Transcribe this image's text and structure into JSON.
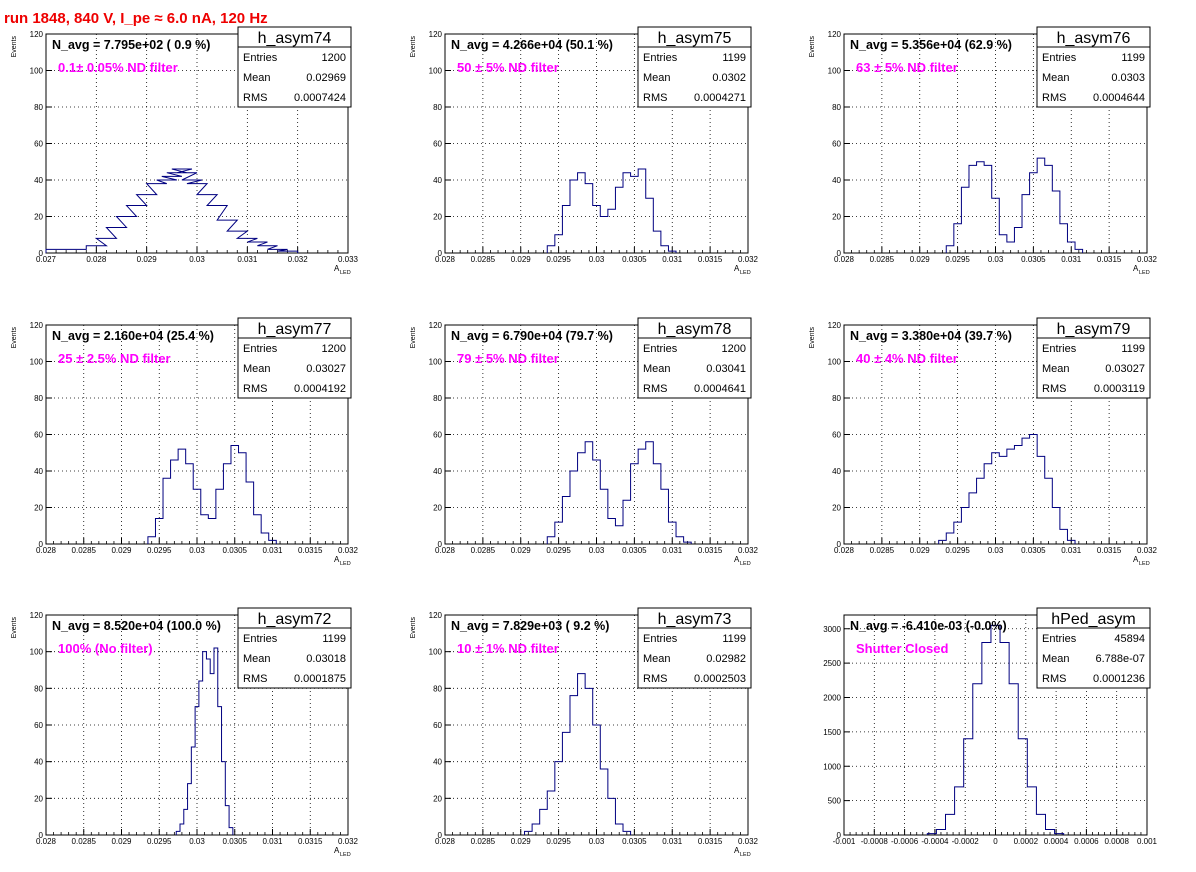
{
  "canvas_title": "run 1848,   840 V, I_pe ≈ 6.0 nA, 120 Hz",
  "colors": {
    "histogram": "#000080",
    "annotation": "#ff00ff",
    "title": "#ee0000"
  },
  "chart_data": [
    {
      "type": "histogram",
      "name": "h_asym74",
      "navg": "N_avg = 7.795e+02 ( 0.9 %)",
      "annotation": "0.1± 0.05% ND filter",
      "stats": {
        "entries_label": "Entries",
        "entries": "1200",
        "mean_label": "Mean",
        "mean": "0.02969",
        "rms_label": "RMS",
        "rms": "0.0007424"
      },
      "ylabel": "Events",
      "xlabel": "A",
      "xlabel_sub": "LED",
      "xlim": [
        0.027,
        0.033
      ],
      "ylim": [
        0,
        120
      ],
      "xticks": [
        0.027,
        0.028,
        0.029,
        0.03,
        0.031,
        0.032,
        0.033
      ],
      "xtick_labels": [
        "0.027",
        "0.028",
        "0.029",
        "0.03",
        "0.031",
        "0.032",
        "0.033"
      ],
      "yticks": [
        0,
        20,
        40,
        60,
        80,
        100,
        120
      ],
      "ytick_labels": [
        "0",
        "20",
        "40",
        "60",
        "80",
        "100",
        "120"
      ],
      "grid": true,
      "x": [
        0.0272,
        0.0276,
        0.028,
        0.0282,
        0.0284,
        0.0286,
        0.0288,
        0.029,
        0.0292,
        0.0294,
        0.0295,
        0.0296,
        0.0297,
        0.0298,
        0.0299,
        0.03,
        0.0302,
        0.0304,
        0.0306,
        0.0308,
        0.031,
        0.0312,
        0.0314,
        0.0316,
        0.0318
      ],
      "values": [
        2,
        2,
        4,
        8,
        14,
        20,
        26,
        32,
        38,
        40,
        42,
        44,
        46,
        44,
        40,
        38,
        32,
        26,
        18,
        12,
        8,
        6,
        4,
        2,
        1
      ]
    },
    {
      "type": "histogram",
      "name": "h_asym75",
      "navg": "N_avg = 4.266e+04 (50.1 %)",
      "annotation": "50 ± 5% ND filter",
      "stats": {
        "entries_label": "Entries",
        "entries": "1199",
        "mean_label": "Mean",
        "mean": "0.0302",
        "rms_label": "RMS",
        "rms": "0.0004271"
      },
      "ylabel": "Events",
      "xlabel": "A",
      "xlabel_sub": "LED",
      "xlim": [
        0.028,
        0.032
      ],
      "ylim": [
        0,
        120
      ],
      "xticks": [
        0.028,
        0.0285,
        0.029,
        0.0295,
        0.03,
        0.0305,
        0.031,
        0.0315,
        0.032
      ],
      "xtick_labels": [
        "0.028",
        "0.0285",
        "0.029",
        "0.0295",
        "0.03",
        "0.0305",
        "0.031",
        "0.0315",
        "0.032"
      ],
      "yticks": [
        0,
        20,
        40,
        60,
        80,
        100,
        120
      ],
      "ytick_labels": [
        "0",
        "20",
        "40",
        "60",
        "80",
        "100",
        "120"
      ],
      "grid": true,
      "x": [
        0.0294,
        0.0295,
        0.0296,
        0.0297,
        0.0298,
        0.0299,
        0.03,
        0.0301,
        0.0302,
        0.0303,
        0.0304,
        0.0305,
        0.0306,
        0.0307,
        0.0308,
        0.0309,
        0.031
      ],
      "values": [
        4,
        10,
        26,
        40,
        44,
        38,
        26,
        20,
        24,
        36,
        44,
        42,
        46,
        30,
        12,
        4,
        1
      ]
    },
    {
      "type": "histogram",
      "name": "h_asym76",
      "navg": "N_avg = 5.356e+04 (62.9 %)",
      "annotation": "63 ± 5% ND filter",
      "stats": {
        "entries_label": "Entries",
        "entries": "1199",
        "mean_label": "Mean",
        "mean": "0.0303",
        "rms_label": "RMS",
        "rms": "0.0004644"
      },
      "ylabel": "Events",
      "xlabel": "A",
      "xlabel_sub": "LED",
      "xlim": [
        0.028,
        0.032
      ],
      "ylim": [
        0,
        120
      ],
      "xticks": [
        0.028,
        0.0285,
        0.029,
        0.0295,
        0.03,
        0.0305,
        0.031,
        0.0315,
        0.032
      ],
      "xtick_labels": [
        "0.028",
        "0.0285",
        "0.029",
        "0.0295",
        "0.03",
        "0.0305",
        "0.031",
        "0.0315",
        "0.032"
      ],
      "yticks": [
        0,
        20,
        40,
        60,
        80,
        100,
        120
      ],
      "ytick_labels": [
        "0",
        "20",
        "40",
        "60",
        "80",
        "100",
        "120"
      ],
      "grid": true,
      "x": [
        0.0294,
        0.0295,
        0.0296,
        0.0297,
        0.0298,
        0.0299,
        0.03,
        0.0301,
        0.0302,
        0.0303,
        0.0304,
        0.0305,
        0.0306,
        0.0307,
        0.0308,
        0.0309,
        0.031,
        0.0311
      ],
      "values": [
        4,
        16,
        36,
        48,
        50,
        48,
        30,
        10,
        6,
        14,
        32,
        44,
        52,
        48,
        34,
        16,
        6,
        2
      ]
    },
    {
      "type": "histogram",
      "name": "h_asym77",
      "navg": "N_avg = 2.160e+04 (25.4 %)",
      "annotation": "25 ± 2.5% ND filter",
      "stats": {
        "entries_label": "Entries",
        "entries": "1200",
        "mean_label": "Mean",
        "mean": "0.03027",
        "rms_label": "RMS",
        "rms": "0.0004192"
      },
      "ylabel": "Events",
      "xlabel": "A",
      "xlabel_sub": "LED",
      "xlim": [
        0.028,
        0.032
      ],
      "ylim": [
        0,
        120
      ],
      "xticks": [
        0.028,
        0.0285,
        0.029,
        0.0295,
        0.03,
        0.0305,
        0.031,
        0.0315,
        0.032
      ],
      "xtick_labels": [
        "0.028",
        "0.0285",
        "0.029",
        "0.0295",
        "0.03",
        "0.0305",
        "0.031",
        "0.0315",
        "0.032"
      ],
      "yticks": [
        0,
        20,
        40,
        60,
        80,
        100,
        120
      ],
      "ytick_labels": [
        "0",
        "20",
        "40",
        "60",
        "80",
        "100",
        "120"
      ],
      "grid": true,
      "x": [
        0.0294,
        0.0295,
        0.0296,
        0.0297,
        0.0298,
        0.0299,
        0.03,
        0.0301,
        0.0302,
        0.0303,
        0.0304,
        0.0305,
        0.0306,
        0.0307,
        0.0308,
        0.0309,
        0.031
      ],
      "values": [
        4,
        14,
        36,
        46,
        52,
        44,
        30,
        16,
        14,
        30,
        44,
        54,
        50,
        34,
        16,
        6,
        2
      ]
    },
    {
      "type": "histogram",
      "name": "h_asym78",
      "navg": "N_avg = 6.790e+04 (79.7 %)",
      "annotation": "79 ± 5% ND filter",
      "stats": {
        "entries_label": "Entries",
        "entries": "1200",
        "mean_label": "Mean",
        "mean": "0.03041",
        "rms_label": "RMS",
        "rms": "0.0004641"
      },
      "ylabel": "Events",
      "xlabel": "A",
      "xlabel_sub": "LED",
      "xlim": [
        0.028,
        0.032
      ],
      "ylim": [
        0,
        120
      ],
      "xticks": [
        0.028,
        0.0285,
        0.029,
        0.0295,
        0.03,
        0.0305,
        0.031,
        0.0315,
        0.032
      ],
      "xtick_labels": [
        "0.028",
        "0.0285",
        "0.029",
        "0.0295",
        "0.03",
        "0.0305",
        "0.031",
        "0.0315",
        "0.032"
      ],
      "yticks": [
        0,
        20,
        40,
        60,
        80,
        100,
        120
      ],
      "ytick_labels": [
        "0",
        "20",
        "40",
        "60",
        "80",
        "100",
        "120"
      ],
      "grid": true,
      "x": [
        0.0294,
        0.0295,
        0.0296,
        0.0297,
        0.0298,
        0.0299,
        0.03,
        0.0301,
        0.0302,
        0.0303,
        0.0304,
        0.0305,
        0.0306,
        0.0307,
        0.0308,
        0.0309,
        0.031,
        0.0311,
        0.0312
      ],
      "values": [
        4,
        12,
        26,
        40,
        50,
        56,
        46,
        30,
        14,
        10,
        24,
        44,
        52,
        56,
        44,
        30,
        12,
        4,
        1
      ]
    },
    {
      "type": "histogram",
      "name": "h_asym79",
      "navg": "N_avg = 3.380e+04 (39.7 %)",
      "annotation": "40 ± 4% ND filter",
      "stats": {
        "entries_label": "Entries",
        "entries": "1199",
        "mean_label": "Mean",
        "mean": "0.03027",
        "rms_label": "RMS",
        "rms": "0.0003119"
      },
      "ylabel": "Events",
      "xlabel": "A",
      "xlabel_sub": "LED",
      "xlim": [
        0.028,
        0.032
      ],
      "ylim": [
        0,
        120
      ],
      "xticks": [
        0.028,
        0.0285,
        0.029,
        0.0295,
        0.03,
        0.0305,
        0.031,
        0.0315,
        0.032
      ],
      "xtick_labels": [
        "0.028",
        "0.0285",
        "0.029",
        "0.0295",
        "0.03",
        "0.0305",
        "0.031",
        "0.0315",
        "0.032"
      ],
      "yticks": [
        0,
        20,
        40,
        60,
        80,
        100,
        120
      ],
      "ytick_labels": [
        "0",
        "20",
        "40",
        "60",
        "80",
        "100",
        "120"
      ],
      "grid": true,
      "x": [
        0.0293,
        0.0294,
        0.0295,
        0.0296,
        0.0297,
        0.0298,
        0.0299,
        0.03,
        0.0301,
        0.0302,
        0.0303,
        0.0304,
        0.0305,
        0.0306,
        0.0307,
        0.0308,
        0.0309,
        0.031
      ],
      "values": [
        2,
        6,
        12,
        20,
        28,
        36,
        44,
        50,
        48,
        52,
        54,
        58,
        60,
        48,
        36,
        20,
        8,
        2
      ]
    },
    {
      "type": "histogram",
      "name": "h_asym72",
      "navg": "N_avg = 8.520e+04 (100.0 %)",
      "annotation": "100% (No filter)",
      "stats": {
        "entries_label": "Entries",
        "entries": "1199",
        "mean_label": "Mean",
        "mean": "0.03018",
        "rms_label": "RMS",
        "rms": "0.0001875"
      },
      "ylabel": "Events",
      "xlabel": "A",
      "xlabel_sub": "LED",
      "xlim": [
        0.028,
        0.032
      ],
      "ylim": [
        0,
        120
      ],
      "xticks": [
        0.028,
        0.0285,
        0.029,
        0.0295,
        0.03,
        0.0305,
        0.031,
        0.0315,
        0.032
      ],
      "xtick_labels": [
        "0.028",
        "0.0285",
        "0.029",
        "0.0295",
        "0.03",
        "0.0305",
        "0.031",
        "0.0315",
        "0.032"
      ],
      "yticks": [
        0,
        20,
        40,
        60,
        80,
        100,
        120
      ],
      "ytick_labels": [
        "0",
        "20",
        "40",
        "60",
        "80",
        "100",
        "120"
      ],
      "grid": true,
      "x": [
        0.02975,
        0.0298,
        0.02985,
        0.0299,
        0.02995,
        0.03,
        0.03005,
        0.0301,
        0.03015,
        0.0302,
        0.03025,
        0.0303,
        0.03035,
        0.0304,
        0.03045
      ],
      "values": [
        2,
        6,
        14,
        28,
        48,
        70,
        84,
        100,
        96,
        88,
        102,
        70,
        40,
        16,
        4
      ]
    },
    {
      "type": "histogram",
      "name": "h_asym73",
      "navg": "N_avg = 7.829e+03 ( 9.2 %)",
      "annotation": "10 ± 1% ND filter",
      "stats": {
        "entries_label": "Entries",
        "entries": "1199",
        "mean_label": "Mean",
        "mean": "0.02982",
        "rms_label": "RMS",
        "rms": "0.0002503"
      },
      "ylabel": "Events",
      "xlabel": "A",
      "xlabel_sub": "LED",
      "xlim": [
        0.028,
        0.032
      ],
      "ylim": [
        0,
        120
      ],
      "xticks": [
        0.028,
        0.0285,
        0.029,
        0.0295,
        0.03,
        0.0305,
        0.031,
        0.0315,
        0.032
      ],
      "xtick_labels": [
        "0.028",
        "0.0285",
        "0.029",
        "0.0295",
        "0.03",
        "0.0305",
        "0.031",
        "0.0315",
        "0.032"
      ],
      "yticks": [
        0,
        20,
        40,
        60,
        80,
        100,
        120
      ],
      "ytick_labels": [
        "0",
        "20",
        "40",
        "60",
        "80",
        "100",
        "120"
      ],
      "grid": true,
      "x": [
        0.0291,
        0.0292,
        0.0293,
        0.0294,
        0.0295,
        0.0296,
        0.0297,
        0.0298,
        0.0299,
        0.03,
        0.0301,
        0.0302,
        0.0303,
        0.0304
      ],
      "values": [
        2,
        6,
        14,
        24,
        40,
        56,
        76,
        88,
        80,
        60,
        36,
        20,
        6,
        2
      ]
    },
    {
      "type": "histogram",
      "name": "hPed_asym",
      "navg": "N_avg = -6.410e-03 (-0.0%)",
      "annotation": "Shutter Closed",
      "stats": {
        "entries_label": "Entries",
        "entries": "45894",
        "mean_label": "Mean",
        "mean": "6.788e-07",
        "rms_label": "RMS",
        "rms": "0.0001236"
      },
      "ylabel": "",
      "xlabel": "",
      "xlabel_sub": "",
      "xlim": [
        -0.001,
        0.001
      ],
      "ylim": [
        0,
        3200
      ],
      "xticks": [
        -0.001,
        -0.0008,
        -0.0006,
        -0.0004,
        -0.0002,
        0,
        0.0002,
        0.0004,
        0.0006,
        0.0008,
        0.001
      ],
      "xtick_labels": [
        "-0.001",
        "-0.0008",
        "-0.0006",
        "-0.0004",
        "-0.0002",
        "0",
        "0.0002",
        "0.0004",
        "0.0006",
        "0.0008",
        "0.001"
      ],
      "yticks": [
        0,
        500,
        1000,
        1500,
        2000,
        2500,
        3000
      ],
      "ytick_labels": [
        "0",
        "500",
        "1000",
        "1500",
        "2000",
        "2500",
        "3000"
      ],
      "grid": true,
      "x": [
        -0.00042,
        -0.00036,
        -0.0003,
        -0.00024,
        -0.00018,
        -0.00012,
        -6e-05,
        0,
        6e-05,
        0.00012,
        0.00018,
        0.00024,
        0.0003,
        0.00036,
        0.00042
      ],
      "values": [
        20,
        80,
        300,
        700,
        1400,
        2200,
        2800,
        3050,
        2800,
        2200,
        1400,
        700,
        300,
        80,
        20
      ]
    }
  ]
}
